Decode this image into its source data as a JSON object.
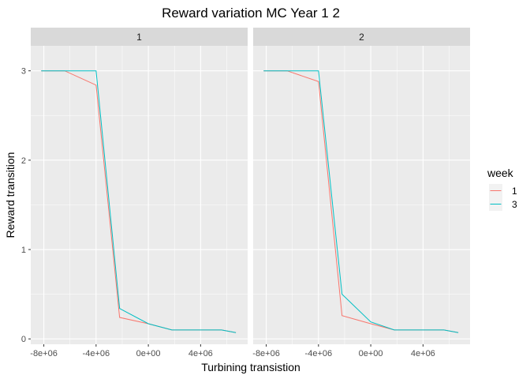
{
  "chart_data": {
    "type": "line",
    "title": "Reward variation  MC Year 1 2",
    "xlabel": "Turbining transistion",
    "ylabel": "Reward transition",
    "xlim": [
      -9000000,
      7600000
    ],
    "ylim": [
      -0.06,
      3.28
    ],
    "x_ticks": [
      -8000000,
      -4000000,
      0,
      4000000
    ],
    "x_tick_labels": [
      "-8e+06",
      "-4e+06",
      "0e+00",
      "4e+06"
    ],
    "y_ticks": [
      0,
      1,
      2,
      3
    ],
    "y_tick_labels": [
      "0",
      "1",
      "2",
      "3"
    ],
    "grid": true,
    "legend": {
      "title": "week",
      "position": "right",
      "entries": [
        {
          "label": "1",
          "color": "#F8766D"
        },
        {
          "label": "3",
          "color": "#00BFC4"
        }
      ]
    },
    "panels": [
      {
        "label": "1",
        "series": [
          {
            "name": "1",
            "color": "#F8766D",
            "x": [
              -8200000,
              -6400000,
              -4000000,
              -2200000,
              0,
              1800000,
              4000000,
              5600000,
              6700000
            ],
            "y": [
              3.0,
              3.0,
              2.84,
              0.24,
              0.17,
              0.1,
              0.1,
              0.1,
              0.07
            ]
          },
          {
            "name": "3",
            "color": "#00BFC4",
            "x": [
              -8200000,
              -6400000,
              -4000000,
              -2200000,
              0,
              1800000,
              4000000,
              5600000,
              6700000
            ],
            "y": [
              3.0,
              3.0,
              3.0,
              0.34,
              0.17,
              0.1,
              0.1,
              0.1,
              0.07
            ]
          }
        ]
      },
      {
        "label": "2",
        "series": [
          {
            "name": "1",
            "color": "#F8766D",
            "x": [
              -8200000,
              -6400000,
              -4000000,
              -2200000,
              0,
              1800000,
              4000000,
              5600000,
              6700000
            ],
            "y": [
              3.0,
              3.0,
              2.88,
              0.26,
              0.17,
              0.1,
              0.1,
              0.1,
              0.07
            ]
          },
          {
            "name": "3",
            "color": "#00BFC4",
            "x": [
              -8200000,
              -6400000,
              -4000000,
              -2200000,
              0,
              1800000,
              4000000,
              5600000,
              6700000
            ],
            "y": [
              3.0,
              3.0,
              3.0,
              0.5,
              0.19,
              0.1,
              0.1,
              0.1,
              0.07
            ]
          }
        ]
      }
    ]
  }
}
